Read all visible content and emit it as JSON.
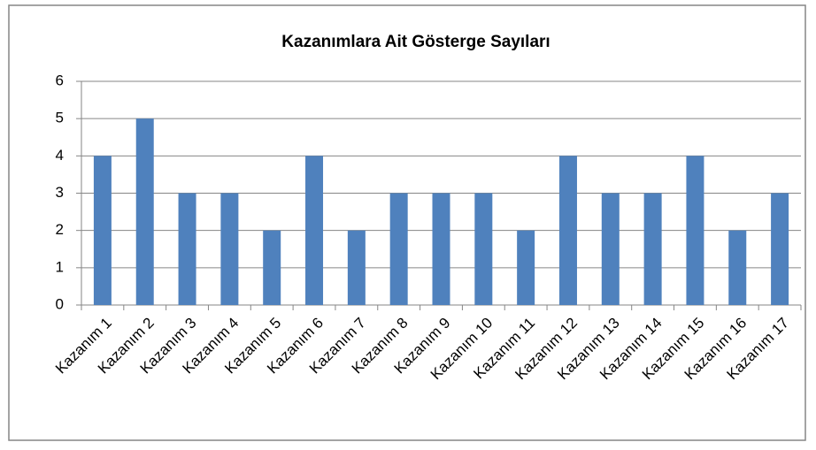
{
  "chart_data": {
    "type": "bar",
    "title": "Kazanımlara Ait Gösterge Sayıları",
    "categories": [
      "Kazanım 1",
      "Kazanım 2",
      "Kazanım 3",
      "Kazanım 4",
      "Kazanım 5",
      "Kazanım 6",
      "Kazanım 7",
      "Kazanım 8",
      "Kazanım 9",
      "Kazanım 10",
      "Kazanım 11",
      "Kazanım 12",
      "Kazanım 13",
      "Kazanım 14",
      "Kazanım 15",
      "Kazanım 16",
      "Kazanım 17"
    ],
    "values": [
      4,
      5,
      3,
      3,
      2,
      4,
      2,
      3,
      3,
      3,
      2,
      4,
      3,
      3,
      4,
      2,
      3
    ],
    "color": "#4f81bd",
    "ylim": [
      0,
      6
    ],
    "yticks": [
      0,
      1,
      2,
      3,
      4,
      5,
      6
    ],
    "grid": true
  }
}
